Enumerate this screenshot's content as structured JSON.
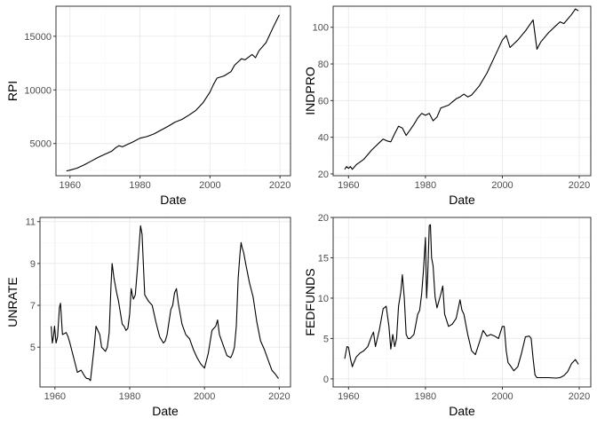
{
  "chart_data": [
    {
      "type": "line",
      "xlabel": "Date",
      "ylabel": "RPI",
      "xlim": [
        1956,
        2023
      ],
      "ylim": [
        2000,
        17800
      ],
      "x_ticks": [
        1960,
        1980,
        2000,
        2020
      ],
      "y_ticks": [
        5000,
        10000,
        15000
      ],
      "x_tick_labels": [
        "1960",
        "1980",
        "2000",
        "2020"
      ],
      "y_tick_labels": [
        "5000",
        "10000",
        "15000"
      ],
      "grid": true,
      "series": [
        {
          "color": "#000000",
          "x": [
            1959,
            1960,
            1962,
            1964,
            1966,
            1968,
            1970,
            1972,
            1973,
            1974,
            1975,
            1976,
            1978,
            1980,
            1982,
            1984,
            1986,
            1988,
            1990,
            1992,
            1994,
            1996,
            1998,
            2000,
            2001,
            2002,
            2004,
            2006,
            2007,
            2008,
            2009,
            2010,
            2012,
            2013,
            2014,
            2016,
            2018,
            2019.8
          ],
          "y": [
            2450,
            2520,
            2700,
            3000,
            3350,
            3700,
            4000,
            4300,
            4600,
            4800,
            4700,
            4850,
            5150,
            5500,
            5650,
            5900,
            6250,
            6600,
            7000,
            7250,
            7650,
            8100,
            8800,
            9800,
            10500,
            11100,
            11300,
            11700,
            12300,
            12600,
            12900,
            12800,
            13300,
            13000,
            13650,
            14400,
            15800,
            17000
          ]
        }
      ]
    },
    {
      "type": "line",
      "xlabel": "Date",
      "ylabel": "INDPRO",
      "xlim": [
        1956,
        2023
      ],
      "ylim": [
        19,
        111.5
      ],
      "x_ticks": [
        1960,
        1980,
        2000,
        2020
      ],
      "y_ticks": [
        20,
        40,
        60,
        80,
        100
      ],
      "x_tick_labels": [
        "1960",
        "1980",
        "2000",
        "2020"
      ],
      "y_tick_labels": [
        "20",
        "40",
        "60",
        "80",
        "100"
      ],
      "grid": true,
      "series": [
        {
          "color": "#000000",
          "x": [
            1959,
            1959.5,
            1960,
            1960.5,
            1961,
            1962,
            1964,
            1966,
            1967,
            1968,
            1969,
            1970,
            1971,
            1972,
            1973,
            1974,
            1975,
            1976,
            1977,
            1978,
            1979,
            1980,
            1981,
            1982,
            1983,
            1984,
            1986,
            1988,
            1989,
            1990,
            1991,
            1992,
            1994,
            1996,
            1998,
            2000,
            2001,
            2002,
            2004,
            2006,
            2007,
            2008,
            2009,
            2010,
            2012,
            2014,
            2015,
            2016,
            2018,
            2019,
            2019.8
          ],
          "y": [
            22.5,
            24,
            23,
            24,
            22.5,
            25,
            28,
            33,
            35,
            37,
            39,
            38,
            37.5,
            42,
            46,
            45,
            41,
            44,
            47,
            50.5,
            53,
            52,
            53,
            49,
            51,
            56,
            57.5,
            61,
            62,
            63.5,
            62,
            63,
            68,
            75,
            84,
            93,
            95.5,
            89,
            93,
            98,
            101,
            104,
            88,
            92,
            97,
            101,
            103,
            102,
            107,
            110,
            109
          ]
        }
      ]
    },
    {
      "type": "line",
      "xlabel": "Date",
      "ylabel": "UNRATE",
      "xlim": [
        1956,
        2023
      ],
      "ylim": [
        3.1,
        11.2
      ],
      "x_ticks": [
        1960,
        1980,
        2000,
        2020
      ],
      "y_ticks": [
        5,
        7,
        9,
        11
      ],
      "x_tick_labels": [
        "1960",
        "1980",
        "2000",
        "2020"
      ],
      "y_tick_labels": [
        "5",
        "7",
        "9",
        "11"
      ],
      "grid": true,
      "series": [
        {
          "color": "#000000",
          "x": [
            1959,
            1959.3,
            1959.6,
            1959.9,
            1960.3,
            1960.7,
            1961.2,
            1961.5,
            1962,
            1963,
            1963.5,
            1964,
            1965,
            1966,
            1967,
            1968,
            1968.5,
            1969,
            1969.5,
            1970,
            1970.5,
            1971,
            1972,
            1972.5,
            1973,
            1973.5,
            1974,
            1974.5,
            1975,
            1975.3,
            1975.8,
            1976.5,
            1977,
            1978,
            1978.5,
            1979,
            1979.5,
            1980,
            1980.4,
            1980.7,
            1981,
            1981.5,
            1982,
            1982.5,
            1982.9,
            1983.3,
            1984,
            1985,
            1986,
            1987,
            1988,
            1989,
            1989.5,
            1990,
            1991,
            1991.5,
            1992,
            1992.5,
            1993,
            1994,
            1995,
            1996,
            1997,
            1998,
            1999,
            2000,
            2001,
            2002,
            2003,
            2003.5,
            2004,
            2005,
            2006,
            2007,
            2007.5,
            2008,
            2008.5,
            2009,
            2009.5,
            2009.8,
            2010,
            2010.5,
            2011,
            2012,
            2013,
            2014,
            2015,
            2016,
            2017,
            2018,
            2019,
            2019.8
          ],
          "y": [
            6,
            5.2,
            5.5,
            6,
            5.2,
            5.5,
            6.9,
            7.1,
            5.6,
            5.7,
            5.5,
            5.2,
            4.5,
            3.8,
            3.9,
            3.6,
            3.5,
            3.5,
            3.4,
            4.2,
            5,
            6,
            5.6,
            5,
            4.9,
            4.8,
            5,
            5.7,
            8,
            9,
            8.3,
            7.6,
            7.2,
            6.1,
            6,
            5.8,
            5.9,
            6.6,
            7.8,
            7.5,
            7.3,
            7.5,
            8.6,
            9.8,
            10.8,
            10.4,
            7.5,
            7.2,
            7,
            6.2,
            5.5,
            5.2,
            5.3,
            5.6,
            6.8,
            7,
            7.6,
            7.8,
            7.1,
            6.1,
            5.6,
            5.4,
            4.9,
            4.5,
            4.2,
            4,
            4.7,
            5.8,
            6,
            6.3,
            5.6,
            5.1,
            4.6,
            4.5,
            4.7,
            5,
            6,
            8.3,
            9.5,
            10,
            9.8,
            9.5,
            9,
            8.1,
            7.4,
            6.2,
            5.3,
            4.9,
            4.4,
            3.9,
            3.7,
            3.5
          ]
        }
      ]
    },
    {
      "type": "line",
      "xlabel": "Date",
      "ylabel": "FEDFUNDS",
      "xlim": [
        1956,
        2023
      ],
      "ylim": [
        -1.0,
        20.0
      ],
      "x_ticks": [
        1960,
        1980,
        2000,
        2020
      ],
      "y_ticks": [
        0,
        5,
        10,
        15,
        20
      ],
      "x_tick_labels": [
        "1960",
        "1980",
        "2000",
        "2020"
      ],
      "y_tick_labels": [
        "0",
        "5",
        "10",
        "15",
        "20"
      ],
      "grid": true,
      "series": [
        {
          "color": "#000000",
          "x": [
            1959,
            1959.6,
            1960,
            1960.5,
            1961,
            1961.3,
            1962,
            1963,
            1964,
            1965,
            1966,
            1966.5,
            1967,
            1968,
            1969,
            1969.8,
            1970.5,
            1971,
            1971.5,
            1972,
            1972.5,
            1973,
            1973.6,
            1974,
            1974.5,
            1975,
            1975.5,
            1976,
            1977,
            1978,
            1978.5,
            1979,
            1979.5,
            1980,
            1980.3,
            1980.6,
            1981,
            1981.3,
            1981.6,
            1982,
            1982.5,
            1983,
            1984,
            1984.5,
            1985,
            1986,
            1987,
            1988,
            1989,
            1989.5,
            1990,
            1991,
            1992,
            1993,
            1994,
            1995,
            1996,
            1997,
            1998,
            1999,
            2000,
            2000.5,
            2001,
            2001.5,
            2002,
            2003,
            2004,
            2005,
            2006,
            2007,
            2007.5,
            2008,
            2008.5,
            2009,
            2010,
            2012,
            2014,
            2015,
            2016,
            2017,
            2018,
            2019,
            2019.5,
            2019.8
          ],
          "y": [
            2.5,
            4,
            3.9,
            2.5,
            1.5,
            1.9,
            2.7,
            3.2,
            3.5,
            4,
            5.3,
            5.8,
            4,
            6,
            8.7,
            9,
            6.5,
            3.7,
            5.5,
            4,
            5,
            9,
            10.8,
            12.9,
            10,
            5.5,
            5,
            5,
            5.5,
            8,
            8.5,
            10.5,
            13.5,
            17.5,
            10,
            13,
            19,
            19.1,
            15,
            14,
            10.2,
            8.8,
            10.5,
            11.5,
            8,
            6.5,
            6.8,
            7.5,
            9.8,
            8.5,
            8,
            5.5,
            3.5,
            3,
            4.5,
            6,
            5.3,
            5.5,
            5.3,
            5,
            6.5,
            6.5,
            3.5,
            2,
            1.7,
            1,
            1.5,
            3.2,
            5.2,
            5.3,
            5,
            2.5,
            0.5,
            0.15,
            0.15,
            0.15,
            0.1,
            0.15,
            0.4,
            0.9,
            1.9,
            2.4,
            2,
            1.8
          ]
        }
      ]
    }
  ]
}
